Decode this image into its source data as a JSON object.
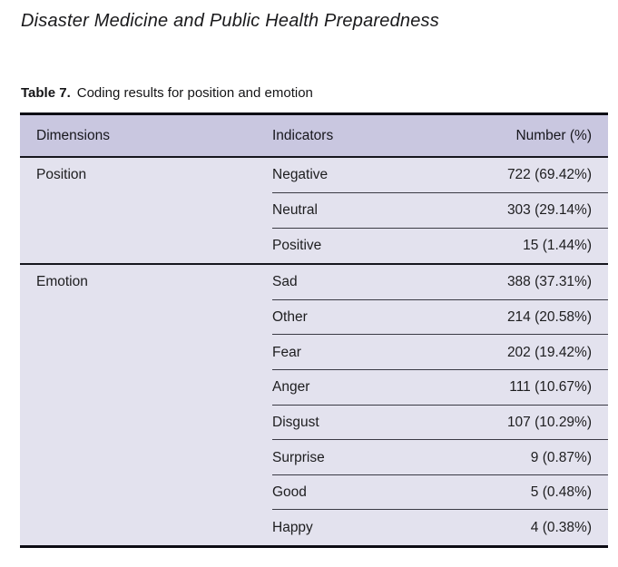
{
  "page": {
    "journal_title": "Disaster Medicine and Public Health Preparedness"
  },
  "caption": {
    "label": "Table 7.",
    "text": "Coding results for position and emotion"
  },
  "table": {
    "columns": [
      "Dimensions",
      "Indicators",
      "Number (%)"
    ],
    "groups": [
      {
        "dimension": "Position",
        "rows": [
          {
            "indicator": "Negative",
            "number": "722 (69.42%)"
          },
          {
            "indicator": "Neutral",
            "number": "303 (29.14%)"
          },
          {
            "indicator": "Positive",
            "number": "15 (1.44%)"
          }
        ]
      },
      {
        "dimension": "Emotion",
        "rows": [
          {
            "indicator": "Sad",
            "number": "388 (37.31%)"
          },
          {
            "indicator": "Other",
            "number": "214 (20.58%)"
          },
          {
            "indicator": "Fear",
            "number": "202 (19.42%)"
          },
          {
            "indicator": "Anger",
            "number": "111 (10.67%)"
          },
          {
            "indicator": "Disgust",
            "number": "107 (10.29%)"
          },
          {
            "indicator": "Surprise",
            "number": "9 (0.87%)"
          },
          {
            "indicator": "Good",
            "number": "5 (0.48%)"
          },
          {
            "indicator": "Happy",
            "number": "4 (0.38%)"
          }
        ]
      }
    ]
  },
  "colors": {
    "header_bg": "#c9c7e0",
    "body_bg": "#e3e2ee",
    "rule_dark": "#0c0c14",
    "rule_mid": "#16161e",
    "rule_light": "#3a3a44"
  }
}
